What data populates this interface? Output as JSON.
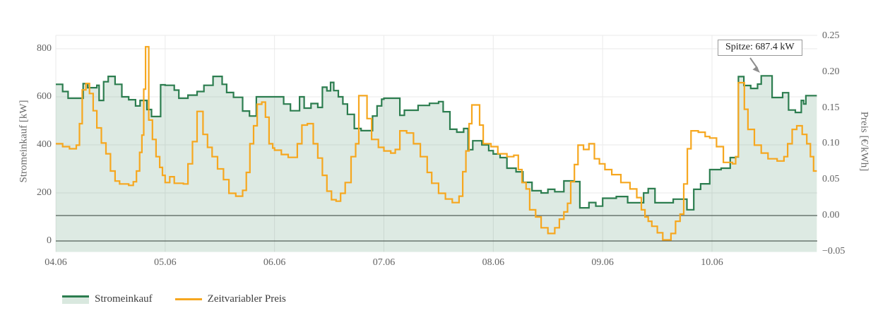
{
  "chart_data": {
    "type": "line",
    "title": "",
    "ylabel_left": "Stromeinkauf [kW]",
    "ylabel_right": "Preis [€/kWh]",
    "x_tick_labels": [
      "04.06",
      "05.06",
      "06.06",
      "07.06",
      "08.06",
      "09.06",
      "10.06"
    ],
    "yleft_ticks": [
      0,
      200,
      400,
      600,
      800
    ],
    "yleft_tick_labels": [
      "0",
      "200",
      "400",
      "600",
      "800"
    ],
    "yleft_range": [
      0,
      870
    ],
    "yright_ticks": [
      -0.05,
      0.0,
      0.05,
      0.1,
      0.15,
      0.2,
      0.25
    ],
    "yright_tick_labels": [
      "−0.05",
      "0.00",
      "0.05",
      "0.10",
      "0.15",
      "0.20",
      "0.25"
    ],
    "yright_range": [
      -0.055,
      0.252
    ],
    "grid": true,
    "legend_position": "bottom-left",
    "end_hour": 167,
    "hours_per_day": 24,
    "annotation": {
      "text": "Spitze: 687.4 kW",
      "value_kw": 687.4
    },
    "legend": [
      "Stromeinkauf",
      "Zeitvariabler Preis"
    ],
    "colors": {
      "green_line": "#2c7d4f",
      "green_fill": "rgba(46,125,79,0.16)",
      "orange_line": "#f6a71f",
      "grid": "#eaeaea",
      "zeroline": "#333333",
      "arrow": "#8e8e8e"
    },
    "series": [
      {
        "name": "Stromeinkauf",
        "axis": "left",
        "unit": "kW",
        "style": "step-area",
        "points": [
          [
            0,
            652
          ],
          [
            1.5,
            622
          ],
          [
            2.7,
            594
          ],
          [
            6,
            655
          ],
          [
            7,
            638
          ],
          [
            9,
            648
          ],
          [
            9.5,
            585
          ],
          [
            10.5,
            663
          ],
          [
            11.5,
            685
          ],
          [
            13,
            652
          ],
          [
            14.5,
            600
          ],
          [
            16,
            588
          ],
          [
            17.5,
            562
          ],
          [
            18.5,
            585
          ],
          [
            20,
            547
          ],
          [
            21,
            518
          ],
          [
            23,
            650
          ],
          [
            24,
            648
          ],
          [
            26,
            628
          ],
          [
            27,
            594
          ],
          [
            29,
            607
          ],
          [
            31,
            622
          ],
          [
            32.5,
            648
          ],
          [
            34.5,
            685
          ],
          [
            36.5,
            652
          ],
          [
            37.5,
            618
          ],
          [
            39,
            598
          ],
          [
            41,
            541
          ],
          [
            42.5,
            520
          ],
          [
            44,
            600
          ],
          [
            48,
            600
          ],
          [
            50,
            570
          ],
          [
            51.5,
            542
          ],
          [
            53.5,
            600
          ],
          [
            54.5,
            553
          ],
          [
            56,
            572
          ],
          [
            57.5,
            556
          ],
          [
            58.5,
            640
          ],
          [
            59.5,
            625
          ],
          [
            60.3,
            660
          ],
          [
            61,
            626
          ],
          [
            62,
            600
          ],
          [
            63,
            570
          ],
          [
            64,
            527
          ],
          [
            65.5,
            468
          ],
          [
            67,
            459
          ],
          [
            69.5,
            520
          ],
          [
            70.5,
            562
          ],
          [
            71.5,
            590
          ],
          [
            72,
            594
          ],
          [
            75.5,
            523
          ],
          [
            76.5,
            544
          ],
          [
            79.5,
            564
          ],
          [
            82,
            573
          ],
          [
            84,
            580
          ],
          [
            85,
            538
          ],
          [
            86.5,
            465
          ],
          [
            88,
            453
          ],
          [
            89.5,
            468
          ],
          [
            90.5,
            380
          ],
          [
            91.5,
            417
          ],
          [
            93.5,
            400
          ],
          [
            95,
            376
          ],
          [
            96,
            362
          ],
          [
            97.5,
            347
          ],
          [
            99,
            303
          ],
          [
            101,
            288
          ],
          [
            102.5,
            244
          ],
          [
            104.5,
            209
          ],
          [
            106.5,
            200
          ],
          [
            108,
            215
          ],
          [
            109.5,
            205
          ],
          [
            111.5,
            250
          ],
          [
            113.5,
            247
          ],
          [
            115,
            138
          ],
          [
            117,
            160
          ],
          [
            118.5,
            145
          ],
          [
            120,
            178
          ],
          [
            123,
            185
          ],
          [
            125.5,
            159
          ],
          [
            129,
            200
          ],
          [
            130,
            218
          ],
          [
            131.5,
            159
          ],
          [
            135.5,
            174
          ],
          [
            138.5,
            130
          ],
          [
            140,
            215
          ],
          [
            141.5,
            238
          ],
          [
            143.5,
            297
          ],
          [
            146,
            303
          ],
          [
            148,
            347
          ],
          [
            149.2,
            350
          ],
          [
            149.8,
            684
          ],
          [
            151,
            647
          ],
          [
            152.5,
            635
          ],
          [
            154,
            653
          ],
          [
            154.8,
            687.4
          ],
          [
            157.2,
            597
          ],
          [
            159.5,
            617
          ],
          [
            160.8,
            545
          ],
          [
            162.3,
            535
          ],
          [
            163.6,
            585
          ],
          [
            164.1,
            570
          ],
          [
            164.6,
            605
          ]
        ]
      },
      {
        "name": "Zeitvariabler Preis",
        "axis": "right",
        "unit": "€/kWh",
        "style": "step-line",
        "points": [
          [
            0,
            0.1
          ],
          [
            1.5,
            0.096
          ],
          [
            3,
            0.093
          ],
          [
            4.5,
            0.098
          ],
          [
            5.2,
            0.128
          ],
          [
            5.8,
            0.175
          ],
          [
            6.6,
            0.184
          ],
          [
            7.4,
            0.17
          ],
          [
            8.2,
            0.146
          ],
          [
            9,
            0.122
          ],
          [
            10,
            0.101
          ],
          [
            11,
            0.086
          ],
          [
            12,
            0.062
          ],
          [
            13,
            0.048
          ],
          [
            14,
            0.044
          ],
          [
            16,
            0.042
          ],
          [
            17,
            0.047
          ],
          [
            17.7,
            0.062
          ],
          [
            18.4,
            0.088
          ],
          [
            18.9,
            0.112
          ],
          [
            19.3,
            0.176
          ],
          [
            19.7,
            0.235
          ],
          [
            20.4,
            0.133
          ],
          [
            21.2,
            0.106
          ],
          [
            22,
            0.082
          ],
          [
            22.8,
            0.067
          ],
          [
            23.4,
            0.056
          ],
          [
            24,
            0.046
          ],
          [
            25,
            0.054
          ],
          [
            26,
            0.045
          ],
          [
            28,
            0.044
          ],
          [
            29,
            0.072
          ],
          [
            30,
            0.103
          ],
          [
            31,
            0.145
          ],
          [
            32.3,
            0.113
          ],
          [
            33.3,
            0.095
          ],
          [
            34.3,
            0.082
          ],
          [
            35.5,
            0.065
          ],
          [
            36.8,
            0.05
          ],
          [
            38,
            0.031
          ],
          [
            39.5,
            0.027
          ],
          [
            41,
            0.035
          ],
          [
            41.8,
            0.06
          ],
          [
            42.6,
            0.1
          ],
          [
            43.4,
            0.125
          ],
          [
            44.2,
            0.155
          ],
          [
            45.2,
            0.158
          ],
          [
            46,
            0.137
          ],
          [
            46.8,
            0.1
          ],
          [
            47.6,
            0.094
          ],
          [
            48,
            0.091
          ],
          [
            49.5,
            0.085
          ],
          [
            51,
            0.081
          ],
          [
            53,
            0.1
          ],
          [
            54,
            0.126
          ],
          [
            55.2,
            0.128
          ],
          [
            56.5,
            0.1
          ],
          [
            57.5,
            0.08
          ],
          [
            58.5,
            0.056
          ],
          [
            59.5,
            0.034
          ],
          [
            60.5,
            0.022
          ],
          [
            61.5,
            0.02
          ],
          [
            62.5,
            0.031
          ],
          [
            63.5,
            0.046
          ],
          [
            64.8,
            0.082
          ],
          [
            65.8,
            0.1
          ],
          [
            66.5,
            0.167
          ],
          [
            68.3,
            0.135
          ],
          [
            69.3,
            0.106
          ],
          [
            70.8,
            0.095
          ],
          [
            72,
            0.09
          ],
          [
            73.5,
            0.087
          ],
          [
            74.5,
            0.092
          ],
          [
            75.5,
            0.118
          ],
          [
            77,
            0.115
          ],
          [
            78.5,
            0.1
          ],
          [
            80,
            0.082
          ],
          [
            81.5,
            0.06
          ],
          [
            82.5,
            0.045
          ],
          [
            84,
            0.031
          ],
          [
            85.5,
            0.023
          ],
          [
            87,
            0.018
          ],
          [
            88.5,
            0.027
          ],
          [
            89.3,
            0.061
          ],
          [
            90,
            0.09
          ],
          [
            90.7,
            0.128
          ],
          [
            91.3,
            0.154
          ],
          [
            93,
            0.126
          ],
          [
            93.8,
            0.1
          ],
          [
            95.5,
            0.096
          ],
          [
            97,
            0.086
          ],
          [
            99,
            0.082
          ],
          [
            100.5,
            0.084
          ],
          [
            101.5,
            0.064
          ],
          [
            102.3,
            0.046
          ],
          [
            103.2,
            0.037
          ],
          [
            104,
            0.008
          ],
          [
            105.3,
            -0.002
          ],
          [
            106.5,
            -0.017
          ],
          [
            108,
            -0.025
          ],
          [
            109.5,
            -0.017
          ],
          [
            110.5,
            -0.005
          ],
          [
            111.5,
            0.005
          ],
          [
            112.3,
            0.017
          ],
          [
            113,
            0.047
          ],
          [
            113.8,
            0.071
          ],
          [
            114.6,
            0.098
          ],
          [
            115.8,
            0.092
          ],
          [
            117,
            0.1
          ],
          [
            118.2,
            0.079
          ],
          [
            119.3,
            0.072
          ],
          [
            120.5,
            0.064
          ],
          [
            122,
            0.057
          ],
          [
            124,
            0.046
          ],
          [
            126,
            0.037
          ],
          [
            127.5,
            0.025
          ],
          [
            128.5,
            0.008
          ],
          [
            129.3,
            -0.002
          ],
          [
            130,
            -0.008
          ],
          [
            130.8,
            -0.015
          ],
          [
            132,
            -0.024
          ],
          [
            133.2,
            -0.034
          ],
          [
            135,
            -0.025
          ],
          [
            136,
            -0.008
          ],
          [
            137,
            0.002
          ],
          [
            137.8,
            0.044
          ],
          [
            138.6,
            0.093
          ],
          [
            139.4,
            0.118
          ],
          [
            141,
            0.116
          ],
          [
            142.5,
            0.11
          ],
          [
            143.5,
            0.108
          ],
          [
            145,
            0.096
          ],
          [
            146.5,
            0.074
          ],
          [
            148.5,
            0.072
          ],
          [
            149.2,
            0.082
          ],
          [
            149.8,
            0.185
          ],
          [
            151.1,
            0.148
          ],
          [
            151.9,
            0.12
          ],
          [
            153.3,
            0.098
          ],
          [
            154.8,
            0.087
          ],
          [
            156.3,
            0.079
          ],
          [
            158.3,
            0.076
          ],
          [
            159.8,
            0.082
          ],
          [
            160.6,
            0.1
          ],
          [
            161.6,
            0.12
          ],
          [
            162.6,
            0.125
          ],
          [
            163.8,
            0.113
          ],
          [
            164.8,
            0.1
          ],
          [
            165.6,
            0.082
          ],
          [
            166.3,
            0.062
          ]
        ]
      }
    ]
  }
}
